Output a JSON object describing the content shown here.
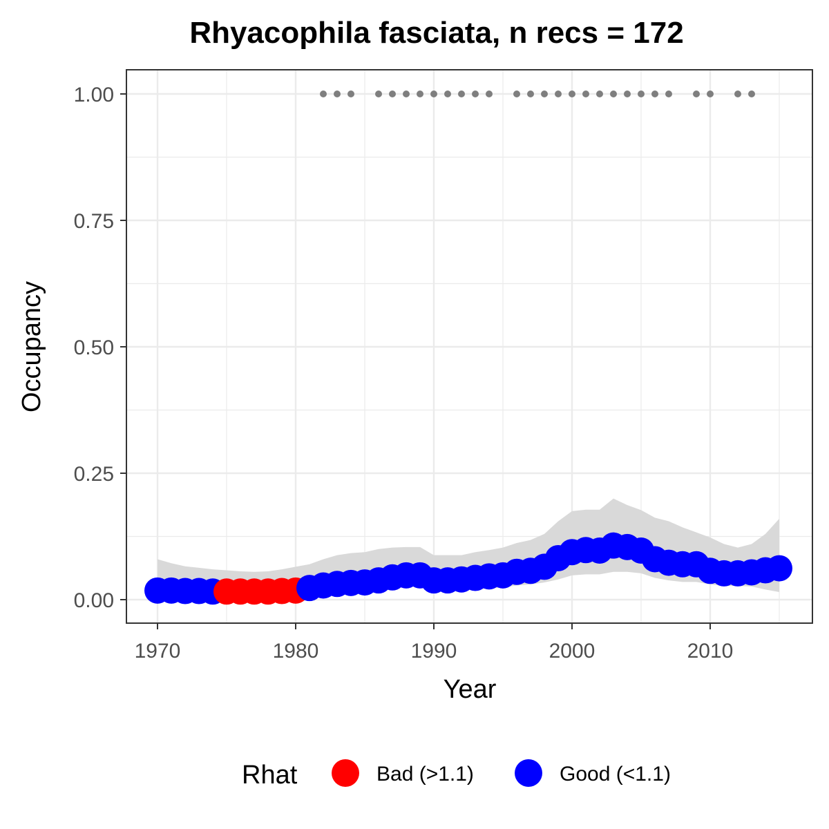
{
  "chart_data": {
    "type": "line",
    "title": "Rhyacophila fasciata, n recs = 172",
    "xlabel": "Year",
    "ylabel": "Occupancy",
    "xlim": [
      1967.8,
      1017.2
    ],
    "ylim": [
      -0.045,
      1.045
    ],
    "x_ticks": [
      1970,
      1980,
      1990,
      2000,
      2010
    ],
    "x_tick_labels": [
      "1970",
      "1980",
      "1990",
      "2000",
      "2010"
    ],
    "x_minor_ticks": [
      1975,
      1985,
      1995,
      2005,
      2015
    ],
    "y_ticks": [
      0,
      0.25,
      0.5,
      0.75,
      1.0
    ],
    "y_tick_labels": [
      "0.00",
      "0.25",
      "0.50",
      "0.75",
      "1.00"
    ],
    "y_minor_ticks": [
      0.125,
      0.375,
      0.625,
      0.875
    ],
    "grid": true,
    "legend_position": "bottom",
    "legend": {
      "title": "Rhat",
      "entries": [
        {
          "label": "Bad (>1.1)",
          "color": "#ff0000"
        },
        {
          "label": "Good (<1.1)",
          "color": "#0000ff"
        }
      ]
    },
    "colors": {
      "bad": "#ff0000",
      "good": "#0000ff",
      "ribbon": "#d9d9d9",
      "records": "#7f7f7f"
    },
    "x": [
      1970,
      1971,
      1972,
      1973,
      1974,
      1975,
      1976,
      1977,
      1978,
      1979,
      1980,
      1981,
      1982,
      1983,
      1984,
      1985,
      1986,
      1987,
      1988,
      1989,
      1990,
      1991,
      1992,
      1993,
      1994,
      1995,
      1996,
      1997,
      1998,
      1999,
      2000,
      2001,
      2002,
      2003,
      2004,
      2005,
      2006,
      2007,
      2008,
      2009,
      2010,
      2011,
      2012,
      2013,
      2014,
      2015
    ],
    "occupancy": [
      0.018,
      0.018,
      0.017,
      0.017,
      0.016,
      0.016,
      0.016,
      0.016,
      0.016,
      0.017,
      0.018,
      0.023,
      0.028,
      0.031,
      0.033,
      0.034,
      0.038,
      0.044,
      0.048,
      0.048,
      0.038,
      0.038,
      0.04,
      0.043,
      0.046,
      0.048,
      0.055,
      0.057,
      0.065,
      0.082,
      0.094,
      0.098,
      0.097,
      0.107,
      0.104,
      0.097,
      0.08,
      0.073,
      0.07,
      0.07,
      0.057,
      0.052,
      0.052,
      0.054,
      0.058,
      0.062
    ],
    "lower": [
      0.002,
      0.003,
      0.003,
      0.003,
      0.003,
      0.003,
      0.003,
      0.003,
      0.003,
      0.003,
      0.004,
      0.006,
      0.01,
      0.013,
      0.015,
      0.016,
      0.018,
      0.022,
      0.026,
      0.025,
      0.017,
      0.018,
      0.019,
      0.02,
      0.022,
      0.024,
      0.028,
      0.03,
      0.034,
      0.04,
      0.048,
      0.05,
      0.05,
      0.055,
      0.055,
      0.052,
      0.043,
      0.038,
      0.035,
      0.035,
      0.03,
      0.027,
      0.027,
      0.026,
      0.02,
      0.015
    ],
    "upper": [
      0.08,
      0.072,
      0.066,
      0.063,
      0.06,
      0.058,
      0.056,
      0.055,
      0.056,
      0.06,
      0.065,
      0.07,
      0.08,
      0.088,
      0.092,
      0.094,
      0.1,
      0.103,
      0.104,
      0.104,
      0.088,
      0.088,
      0.088,
      0.094,
      0.098,
      0.103,
      0.112,
      0.118,
      0.13,
      0.155,
      0.175,
      0.178,
      0.178,
      0.2,
      0.187,
      0.177,
      0.162,
      0.155,
      0.143,
      0.133,
      0.123,
      0.11,
      0.103,
      0.11,
      0.13,
      0.16
    ],
    "rhat_status": [
      "good",
      "good",
      "good",
      "good",
      "good",
      "bad",
      "bad",
      "bad",
      "bad",
      "bad",
      "bad",
      "good",
      "good",
      "good",
      "good",
      "good",
      "good",
      "good",
      "good",
      "good",
      "good",
      "good",
      "good",
      "good",
      "good",
      "good",
      "good",
      "good",
      "good",
      "good",
      "good",
      "good",
      "good",
      "good",
      "good",
      "good",
      "good",
      "good",
      "good",
      "good",
      "good",
      "good",
      "good",
      "good",
      "good",
      "good"
    ],
    "record_years": [
      1982,
      1983,
      1984,
      1986,
      1987,
      1988,
      1989,
      1990,
      1991,
      1992,
      1993,
      1994,
      1996,
      1997,
      1998,
      1999,
      2000,
      2001,
      2002,
      2003,
      2004,
      2005,
      2006,
      2007,
      2009,
      2010,
      2012,
      2013
    ],
    "record_value": 1.0
  }
}
